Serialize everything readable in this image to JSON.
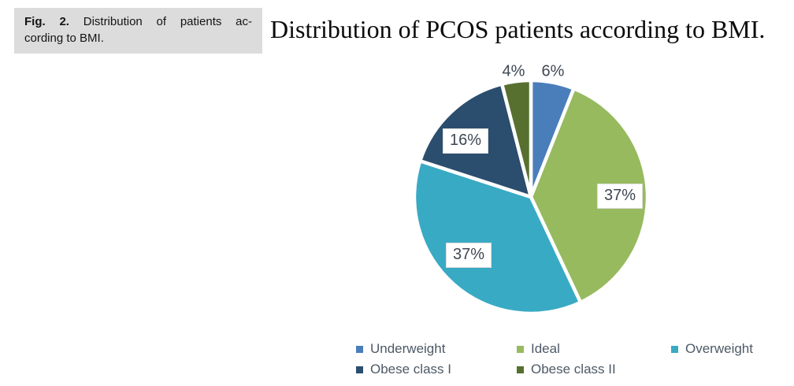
{
  "figure_caption": {
    "label": "Fig. 2.",
    "line1": "Distribution of patients ac-",
    "line2": "cording to BMI."
  },
  "chart_data": {
    "type": "pie",
    "title": "Distribution of PCOS patients according to BMI.",
    "labels": [
      "Underweight",
      "Ideal",
      "Overweight",
      "Obese class I",
      "Obese class II"
    ],
    "values": [
      6,
      37,
      37,
      16,
      4
    ],
    "unit": "%",
    "data_labels": [
      "6%",
      "37%",
      "37%",
      "16%",
      "4%"
    ],
    "colors": [
      "#4A7EBB",
      "#97BA5F",
      "#39AAC4",
      "#2B4D6E",
      "#57702F"
    ],
    "legend_position": "bottom",
    "start_angle_deg": 0,
    "direction": "clockwise"
  }
}
